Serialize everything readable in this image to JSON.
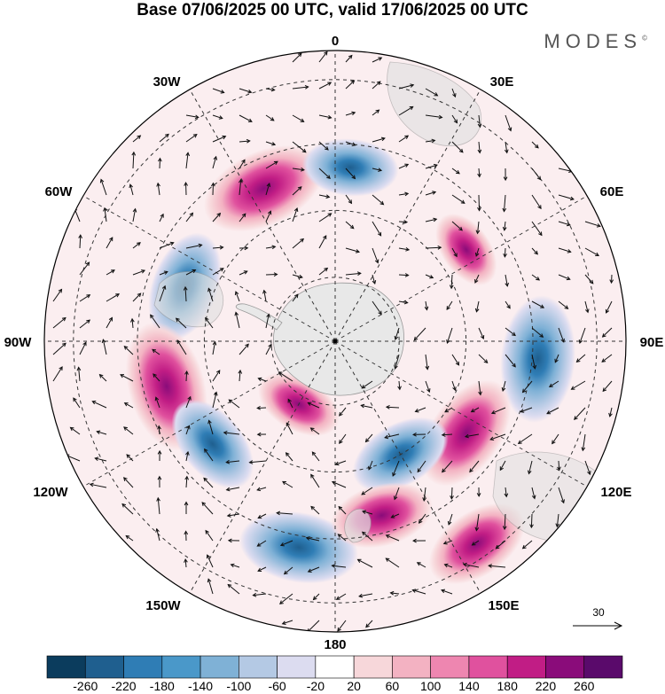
{
  "title": "Base 07/06/2025 00 UTC, valid 17/06/2025 00 UTC",
  "brand": "MODES",
  "brand_mark": "©",
  "longitude_labels": {
    "n": "0",
    "ne": "30E",
    "e": "60E",
    "east": "90E",
    "se": "120E",
    "sse": "150E",
    "s": "180",
    "ssw": "150W",
    "sw": "120W",
    "west": "90W",
    "w": "60W",
    "nw": "30W"
  },
  "vector_scale_label": "30",
  "colorbar": {
    "levels": [
      "-260",
      "-220",
      "-180",
      "-140",
      "-100",
      "-60",
      "-20",
      "20",
      "60",
      "100",
      "140",
      "180",
      "220",
      "260"
    ],
    "colors": [
      "#0b3c5d",
      "#1f5f8f",
      "#2f7db5",
      "#4a98c9",
      "#7fb1d6",
      "#b4c9e4",
      "#dcdcf0",
      "#ffffff",
      "#f7d7da",
      "#f3b2c2",
      "#ee86b0",
      "#e0519e",
      "#c11d85",
      "#8a0c7a",
      "#5a0a6b"
    ]
  },
  "anomaly_centers": [
    {
      "lon_deg": -25,
      "lat_frac": 0.58,
      "value": 200
    },
    {
      "lon_deg": -70,
      "lat_frac": 0.55,
      "value": -160
    },
    {
      "lon_deg": -105,
      "lat_frac": 0.6,
      "value": 210
    },
    {
      "lon_deg": -130,
      "lat_frac": 0.55,
      "value": -140
    },
    {
      "lon_deg": -150,
      "lat_frac": 0.25,
      "value": 100
    },
    {
      "lon_deg": -170,
      "lat_frac": 0.72,
      "value": -180
    },
    {
      "lon_deg": 5,
      "lat_frac": 0.6,
      "value": -120
    },
    {
      "lon_deg": 55,
      "lat_frac": 0.55,
      "value": 80
    },
    {
      "lon_deg": 95,
      "lat_frac": 0.7,
      "value": -200
    },
    {
      "lon_deg": 125,
      "lat_frac": 0.55,
      "value": 180
    },
    {
      "lon_deg": 150,
      "lat_frac": 0.45,
      "value": -140
    },
    {
      "lon_deg": 165,
      "lat_frac": 0.62,
      "value": 140
    },
    {
      "lon_deg": 145,
      "lat_frac": 0.85,
      "value": 150
    }
  ]
}
